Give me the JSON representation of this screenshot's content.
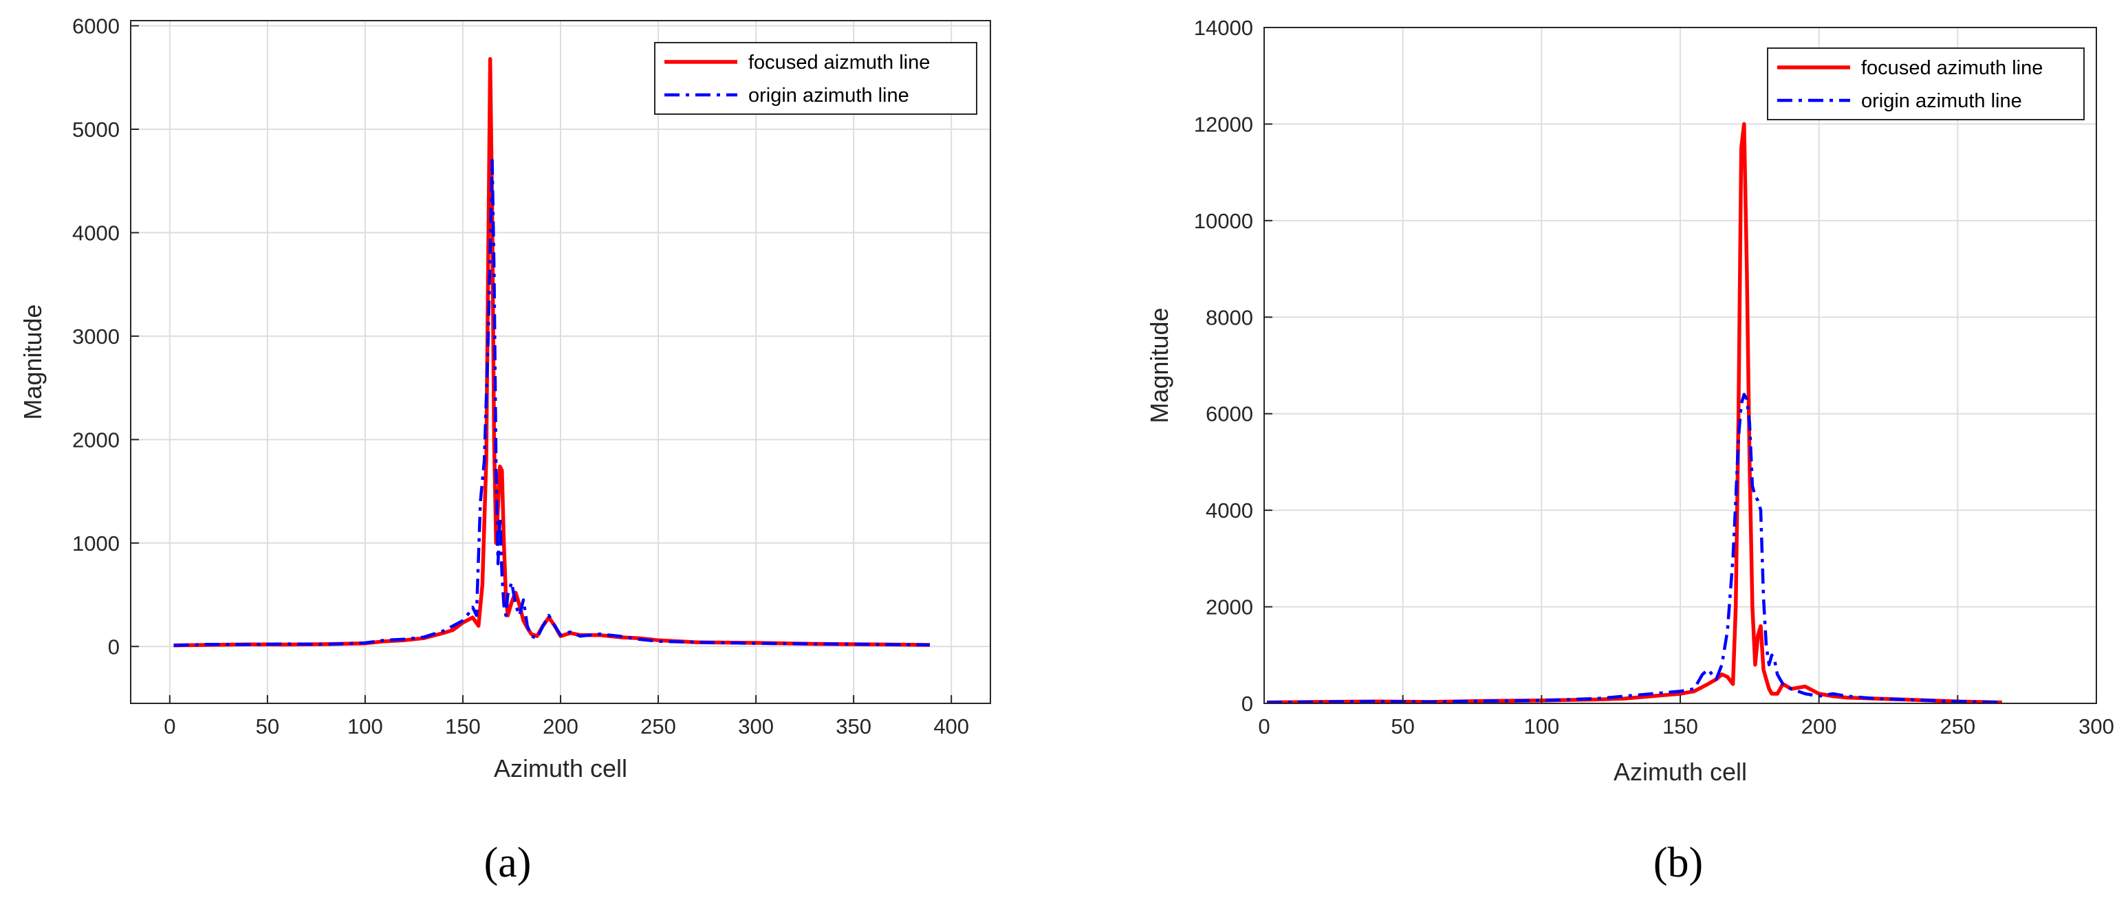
{
  "chart_data": [
    {
      "type": "line",
      "panel_label": "(a)",
      "xlabel": "Azimuth cell",
      "ylabel": "Magnitude",
      "xlim": [
        -20,
        420
      ],
      "ylim": [
        -550,
        6050
      ],
      "xticks": [
        0,
        50,
        100,
        150,
        200,
        250,
        300,
        350,
        400
      ],
      "yticks": [
        0,
        1000,
        2000,
        3000,
        4000,
        5000,
        6000
      ],
      "grid": true,
      "legend": "top-right",
      "series": [
        {
          "name": "focused aizmuth line",
          "color": "#ff0000",
          "style": "solid",
          "x": [
            2,
            20,
            40,
            60,
            80,
            100,
            110,
            120,
            130,
            140,
            145,
            150,
            155,
            158,
            160,
            162,
            163,
            164,
            165,
            166,
            167,
            168,
            169,
            170,
            171,
            172,
            173,
            175,
            177,
            179,
            181,
            183,
            185,
            188,
            191,
            194,
            197,
            200,
            205,
            210,
            220,
            230,
            240,
            250,
            270,
            300,
            330,
            360,
            389
          ],
          "y": [
            10,
            15,
            20,
            18,
            22,
            30,
            50,
            60,
            80,
            130,
            160,
            230,
            280,
            200,
            600,
            1800,
            3800,
            5680,
            4200,
            2000,
            1000,
            1350,
            1740,
            1700,
            1000,
            500,
            300,
            430,
            520,
            400,
            250,
            180,
            120,
            100,
            200,
            280,
            200,
            100,
            130,
            110,
            110,
            90,
            80,
            60,
            40,
            35,
            25,
            20,
            15
          ]
        },
        {
          "name": "origin azimuth line",
          "color": "#0000ff",
          "style": "dashdot",
          "x": [
            2,
            20,
            40,
            60,
            80,
            100,
            110,
            120,
            130,
            140,
            145,
            150,
            153,
            155,
            157,
            159,
            161,
            163,
            165,
            166,
            167,
            168,
            169,
            170,
            171,
            172,
            173,
            175,
            177,
            179,
            181,
            183,
            185,
            188,
            191,
            194,
            197,
            200,
            205,
            210,
            220,
            230,
            240,
            250,
            270,
            300,
            330,
            360,
            389
          ],
          "y": [
            10,
            20,
            18,
            25,
            20,
            35,
            60,
            70,
            90,
            150,
            200,
            250,
            320,
            380,
            300,
            1400,
            1800,
            3000,
            4700,
            3600,
            1700,
            800,
            1250,
            700,
            400,
            300,
            500,
            620,
            400,
            300,
            450,
            200,
            100,
            80,
            200,
            300,
            200,
            110,
            140,
            100,
            120,
            100,
            70,
            50,
            40,
            30,
            25,
            20,
            15
          ]
        }
      ]
    },
    {
      "type": "line",
      "panel_label": "(b)",
      "xlabel": "Azimuth cell",
      "ylabel": "Magnitude",
      "xlim": [
        0,
        300
      ],
      "ylim": [
        0,
        14000
      ],
      "xticks": [
        0,
        50,
        100,
        150,
        200,
        250,
        300
      ],
      "yticks": [
        0,
        2000,
        4000,
        6000,
        8000,
        10000,
        12000,
        14000
      ],
      "grid": true,
      "legend": "top-right",
      "series": [
        {
          "name": "focused azimuth line",
          "color": "#ff0000",
          "style": "solid",
          "x": [
            1,
            20,
            40,
            60,
            80,
            100,
            120,
            130,
            140,
            150,
            155,
            160,
            163,
            165,
            167,
            169,
            170,
            171,
            172,
            173,
            174,
            175,
            176,
            177,
            178,
            179,
            180,
            181,
            182,
            183,
            185,
            187,
            190,
            195,
            200,
            205,
            210,
            220,
            230,
            240,
            250,
            266
          ],
          "y": [
            20,
            30,
            40,
            30,
            50,
            60,
            80,
            100,
            150,
            200,
            250,
            400,
            500,
            600,
            550,
            400,
            2000,
            6000,
            11500,
            12000,
            9000,
            5000,
            2000,
            800,
            1400,
            1600,
            700,
            500,
            300,
            200,
            200,
            400,
            300,
            350,
            200,
            150,
            120,
            100,
            80,
            60,
            40,
            20
          ]
        },
        {
          "name": "origin azimuth line",
          "color": "#0000ff",
          "style": "dashdot",
          "x": [
            1,
            20,
            40,
            60,
            80,
            100,
            120,
            130,
            140,
            150,
            155,
            158,
            160,
            163,
            165,
            167,
            169,
            170,
            171,
            172,
            173,
            174,
            175,
            176,
            177,
            178,
            179,
            180,
            181,
            182,
            183,
            184,
            185,
            187,
            190,
            195,
            200,
            205,
            210,
            220,
            230,
            240,
            250,
            266
          ],
          "y": [
            20,
            30,
            40,
            30,
            50,
            60,
            100,
            150,
            200,
            250,
            300,
            600,
            700,
            500,
            800,
            1500,
            3000,
            4200,
            5500,
            6200,
            6400,
            6300,
            5800,
            4500,
            4300,
            4200,
            4000,
            2200,
            1200,
            800,
            1000,
            900,
            600,
            400,
            300,
            200,
            150,
            200,
            150,
            100,
            80,
            60,
            40,
            20
          ]
        }
      ]
    }
  ]
}
